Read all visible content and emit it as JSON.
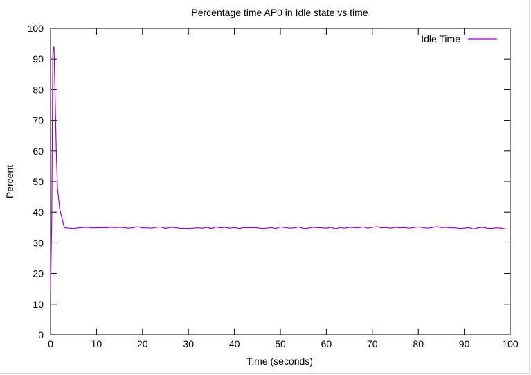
{
  "chart_data": {
    "type": "line",
    "title": "Percentage time AP0 in Idle state vs time",
    "xlabel": "Time (seconds)",
    "ylabel": "Percent",
    "xlim": [
      0,
      100
    ],
    "ylim": [
      0,
      100
    ],
    "x_ticks": [
      "0",
      "10",
      "20",
      "30",
      "40",
      "50",
      "60",
      "70",
      "80",
      "90",
      "100"
    ],
    "y_ticks": [
      "0",
      "10",
      "20",
      "30",
      "40",
      "50",
      "60",
      "70",
      "80",
      "90",
      "100"
    ],
    "grid": false,
    "legend_position": "top-right",
    "series": [
      {
        "name": "Idle Time",
        "color": "#9400d3",
        "x": [
          0,
          0.25,
          0.5,
          0.75,
          1,
          1.25,
          1.5,
          2,
          3,
          4,
          5,
          6,
          7,
          8,
          9,
          10,
          11,
          12,
          13,
          14,
          15,
          16,
          17,
          18,
          19,
          20,
          21,
          22,
          23,
          24,
          25,
          26,
          27,
          28,
          29,
          30,
          31,
          32,
          33,
          34,
          35,
          36,
          37,
          38,
          39,
          40,
          41,
          42,
          43,
          44,
          45,
          46,
          47,
          48,
          49,
          50,
          51,
          52,
          53,
          54,
          55,
          56,
          57,
          58,
          59,
          60,
          61,
          62,
          63,
          64,
          65,
          66,
          67,
          68,
          69,
          70,
          71,
          72,
          73,
          74,
          75,
          76,
          77,
          78,
          79,
          80,
          81,
          82,
          83,
          84,
          85,
          86,
          87,
          88,
          89,
          90,
          91,
          92,
          93,
          94,
          95,
          96,
          97,
          98,
          99
        ],
        "y": [
          14,
          37,
          92,
          94,
          78,
          60,
          48,
          41,
          35,
          34.8,
          34.7,
          34.9,
          35.0,
          35.1,
          34.9,
          34.9,
          35.0,
          34.9,
          35.1,
          35.0,
          35.1,
          35.0,
          34.8,
          35.0,
          35.3,
          34.9,
          34.9,
          34.8,
          35.1,
          35.2,
          34.7,
          35.1,
          35.0,
          34.8,
          34.7,
          34.7,
          34.8,
          34.9,
          34.8,
          35.1,
          34.7,
          35.2,
          34.9,
          35.1,
          34.8,
          35.0,
          34.7,
          35.0,
          34.9,
          35.0,
          34.9,
          34.7,
          34.8,
          35.0,
          34.7,
          35.2,
          35.0,
          34.8,
          34.9,
          35.2,
          34.7,
          34.8,
          35.1,
          35.0,
          34.9,
          34.8,
          35.1,
          34.6,
          35.0,
          34.8,
          35.1,
          35.0,
          34.9,
          35.2,
          34.8,
          35.1,
          35.3,
          34.9,
          35.0,
          34.8,
          35.1,
          34.9,
          35.0,
          34.8,
          35.0,
          35.2,
          35.0,
          34.8,
          35.0,
          35.3,
          35.0,
          35.1,
          34.9,
          34.9,
          34.7,
          34.8,
          35.0,
          34.5,
          34.9,
          35.1,
          34.8,
          34.7,
          34.9,
          34.8,
          34.5
        ]
      }
    ]
  }
}
